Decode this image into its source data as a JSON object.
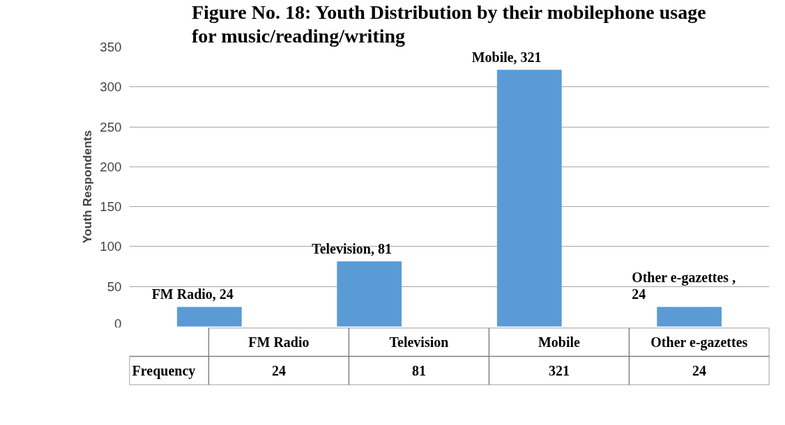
{
  "chart_data": {
    "type": "bar",
    "title": "Figure No. 18: Youth Distribution by their mobilephone usage for music/reading/writing",
    "ylabel": "Youth Respondents",
    "categories": [
      "FM Radio",
      "Television",
      "Mobile",
      "Other e-gazettes"
    ],
    "values": [
      24,
      81,
      321,
      24
    ],
    "color": "#5b9bd5",
    "data_labels": true,
    "annotations": [
      "FM Radio, 24",
      "Television, 81",
      "Mobile, 321",
      "Other e-gazettes , 24",
      "Frequency"
    ],
    "ylim": [
      0,
      350
    ],
    "yticks": [
      0,
      50,
      100,
      150,
      200,
      250,
      300,
      350
    ],
    "grid": true
  }
}
